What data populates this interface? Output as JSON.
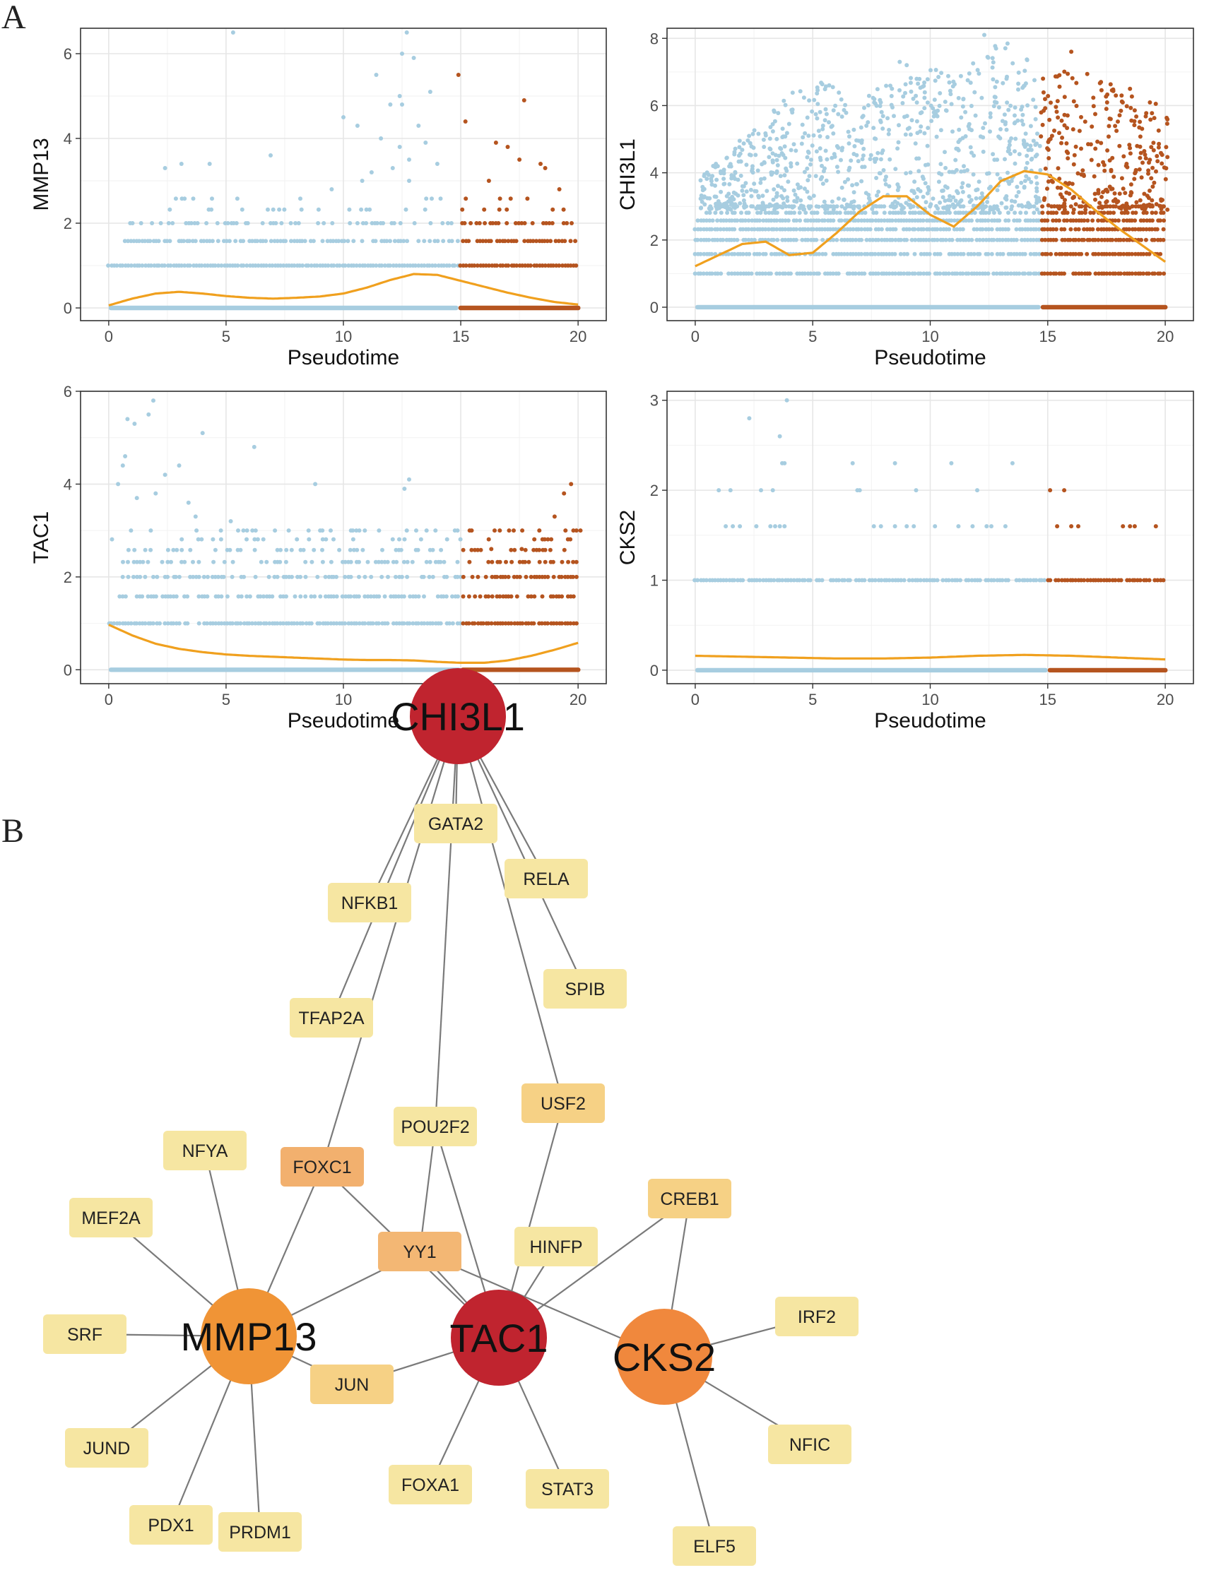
{
  "panels": {
    "a": "A",
    "b": "B"
  },
  "colors": {
    "early": "#a7cde0",
    "late": "#b5541f",
    "smooth": "#f0a01e",
    "tac_chi": "#c0242f",
    "mmp": "#f09436",
    "cks": "#f0883d",
    "tf_light": "#f6e6a2",
    "tf_mid": "#f6d185",
    "tf_foxc1": "#f2b06e",
    "tf_yy1": "#f3b774"
  },
  "chart_data": [
    {
      "type": "scatter",
      "id": "mmp13",
      "xlabel": "Pseudotime",
      "ylabel": "MMP13",
      "xlim": [
        -1.2,
        21.2
      ],
      "ylim": [
        -0.3,
        6.6
      ],
      "xticks": [
        0,
        5,
        10,
        15,
        20
      ],
      "yticks": [
        0,
        2,
        4,
        6
      ],
      "levels": [
        [
          1.0,
          0,
          20.0,
          1.0
        ],
        [
          1.58,
          0.7,
          20.0,
          0.75
        ],
        [
          2.0,
          0.9,
          20.0,
          0.45
        ],
        [
          2.32,
          1.5,
          20.0,
          0.2
        ],
        [
          2.58,
          2.5,
          18.0,
          0.12
        ]
      ],
      "split": 14.9,
      "density": 1.0,
      "sparse": [
        [
          5.3,
          6.5
        ],
        [
          12.7,
          6.5
        ],
        [
          12.5,
          6.0
        ],
        [
          13.0,
          5.9
        ],
        [
          11.4,
          5.5
        ],
        [
          14.9,
          5.5
        ],
        [
          12.4,
          5.0
        ],
        [
          12.0,
          4.8
        ],
        [
          10.0,
          4.5
        ],
        [
          10.6,
          4.3
        ],
        [
          13.2,
          4.3
        ],
        [
          15.2,
          4.4
        ],
        [
          13.5,
          3.9
        ],
        [
          12.8,
          3.5
        ],
        [
          12.1,
          3.3
        ],
        [
          12.8,
          3.0
        ],
        [
          14.0,
          3.4
        ],
        [
          16.5,
          3.9
        ],
        [
          17.0,
          3.8
        ],
        [
          17.7,
          4.9
        ],
        [
          18.4,
          3.4
        ],
        [
          2.4,
          3.3
        ],
        [
          3.1,
          3.4
        ],
        [
          4.3,
          3.4
        ],
        [
          6.9,
          3.6
        ],
        [
          13.7,
          5.1
        ],
        [
          12.5,
          4.8
        ],
        [
          11.6,
          4.0
        ],
        [
          12.4,
          3.8
        ],
        [
          11.2,
          3.2
        ],
        [
          10.8,
          3.0
        ],
        [
          9.5,
          2.8
        ],
        [
          16.2,
          3.0
        ],
        [
          17.5,
          3.5
        ],
        [
          18.6,
          3.3
        ],
        [
          19.2,
          2.8
        ]
      ],
      "smooth_x": [
        0,
        1,
        2,
        3,
        4,
        5,
        6,
        7,
        8,
        9,
        10,
        11,
        12,
        13,
        14,
        15,
        16,
        17,
        18,
        19,
        20
      ],
      "smooth_y": [
        0.06,
        0.22,
        0.34,
        0.38,
        0.34,
        0.28,
        0.24,
        0.22,
        0.24,
        0.27,
        0.34,
        0.48,
        0.66,
        0.8,
        0.78,
        0.64,
        0.5,
        0.36,
        0.24,
        0.14,
        0.08
      ]
    },
    {
      "type": "scatter",
      "id": "chi3l1",
      "xlabel": "Pseudotime",
      "ylabel": "CHI3L1",
      "xlim": [
        -1.2,
        21.2
      ],
      "ylim": [
        -0.4,
        8.3
      ],
      "xticks": [
        0,
        5,
        10,
        15,
        20
      ],
      "yticks": [
        0,
        2,
        4,
        6,
        8
      ],
      "levels": [
        [
          1.0,
          0,
          20.0,
          0.9
        ],
        [
          1.58,
          0,
          20.0,
          0.9
        ],
        [
          2.0,
          0,
          20.0,
          0.9
        ],
        [
          2.32,
          0,
          20.0,
          0.9
        ],
        [
          2.58,
          0,
          20.0,
          0.9
        ],
        [
          2.81,
          0.5,
          20.0,
          0.7
        ],
        [
          3.0,
          0.5,
          20.0,
          0.6
        ]
      ],
      "split": 14.7,
      "density": 1.0,
      "cloud": {
        "n": 1100,
        "xmin": 0.2,
        "xmax": 20.1,
        "ymin": 2.9,
        "seed": 17,
        "amp": [
          4.0,
          4.4,
          5.1,
          5.6,
          6.4,
          6.8,
          6.7,
          6.6,
          6.8,
          6.9,
          7.1,
          7.2,
          7.5,
          8.1,
          7.5,
          7.2,
          7.5,
          6.8,
          6.6,
          6.3,
          6.0
        ]
      },
      "sparse": [
        [
          12.3,
          8.1
        ],
        [
          12.8,
          7.7
        ],
        [
          16.0,
          7.6
        ],
        [
          9.0,
          7.2
        ],
        [
          8.7,
          7.3
        ],
        [
          5.7,
          6.6
        ],
        [
          14.8,
          6.8
        ],
        [
          17.9,
          6.3
        ],
        [
          18.5,
          6.5
        ]
      ],
      "smooth_x": [
        0,
        1,
        2,
        3,
        4,
        5,
        6,
        7,
        8,
        9,
        10,
        11,
        12,
        13,
        14,
        15,
        16,
        17,
        18,
        19,
        20
      ],
      "smooth_y": [
        1.22,
        1.55,
        1.88,
        1.95,
        1.55,
        1.62,
        2.2,
        2.85,
        3.3,
        3.3,
        2.75,
        2.4,
        3.0,
        3.75,
        4.05,
        3.95,
        3.5,
        2.9,
        2.35,
        1.85,
        1.35
      ]
    },
    {
      "type": "scatter",
      "id": "tac1",
      "xlabel": "Pseudotime",
      "ylabel": "TAC1",
      "xlim": [
        -1.2,
        21.2
      ],
      "ylim": [
        -0.3,
        6.0
      ],
      "xticks": [
        0,
        5,
        10,
        15,
        20
      ],
      "yticks": [
        0,
        2,
        4,
        6
      ],
      "levels": [
        [
          1.0,
          0,
          20.0,
          0.95
        ],
        [
          1.58,
          0,
          20.0,
          0.6
        ],
        [
          2.0,
          0,
          20.0,
          0.55
        ],
        [
          2.32,
          0,
          20.0,
          0.35
        ],
        [
          2.58,
          0,
          20.0,
          0.28
        ],
        [
          2.81,
          0,
          20.0,
          0.2
        ],
        [
          3.0,
          0,
          20.0,
          0.18
        ]
      ],
      "split": 15.0,
      "density": 1.0,
      "sparse": [
        [
          1.9,
          5.8
        ],
        [
          1.7,
          5.5
        ],
        [
          0.8,
          5.4
        ],
        [
          1.1,
          5.3
        ],
        [
          4.0,
          5.1
        ],
        [
          6.2,
          4.8
        ],
        [
          0.7,
          4.6
        ],
        [
          0.6,
          4.4
        ],
        [
          3.0,
          4.4
        ],
        [
          2.4,
          4.2
        ],
        [
          0.4,
          4.0
        ],
        [
          8.8,
          4.0
        ],
        [
          12.8,
          4.1
        ],
        [
          12.6,
          3.9
        ],
        [
          19.7,
          4.0
        ],
        [
          19.4,
          3.8
        ],
        [
          2.0,
          3.8
        ],
        [
          1.2,
          3.7
        ],
        [
          3.7,
          3.3
        ],
        [
          3.4,
          3.6
        ],
        [
          5.2,
          3.2
        ],
        [
          10.4,
          3.0
        ],
        [
          12.7,
          3.0
        ],
        [
          19.0,
          3.3
        ],
        [
          19.8,
          3.0
        ],
        [
          20.1,
          3.0
        ],
        [
          16.3,
          2.6
        ],
        [
          17.6,
          2.6
        ]
      ],
      "smooth_x": [
        0,
        1,
        2,
        3,
        4,
        5,
        6,
        7,
        8,
        9,
        10,
        11,
        12,
        13,
        14,
        15,
        16,
        17,
        18,
        19,
        20
      ],
      "smooth_y": [
        0.97,
        0.74,
        0.56,
        0.45,
        0.38,
        0.33,
        0.3,
        0.28,
        0.26,
        0.24,
        0.22,
        0.21,
        0.21,
        0.2,
        0.17,
        0.15,
        0.15,
        0.2,
        0.3,
        0.43,
        0.58
      ]
    },
    {
      "type": "scatter",
      "id": "cks2",
      "xlabel": "Pseudotime",
      "ylabel": "CKS2",
      "xlim": [
        -1.2,
        21.2
      ],
      "ylim": [
        -0.15,
        3.1
      ],
      "xticks": [
        0,
        5,
        10,
        15,
        20
      ],
      "yticks": [
        0,
        1,
        2,
        3
      ],
      "levels": [
        [
          1.0,
          0,
          20.0,
          0.9
        ]
      ],
      "split": 15.0,
      "density": 1.0,
      "sparse": [
        [
          3.9,
          3.0
        ],
        [
          2.3,
          2.8
        ],
        [
          3.6,
          2.6
        ],
        [
          3.7,
          2.3
        ],
        [
          3.8,
          2.3
        ],
        [
          10.9,
          2.3
        ],
        [
          13.5,
          2.3
        ],
        [
          6.7,
          2.3
        ],
        [
          8.5,
          2.3
        ],
        [
          1.0,
          2.0
        ],
        [
          1.5,
          2.0
        ],
        [
          2.8,
          2.0
        ],
        [
          3.3,
          2.0
        ],
        [
          6.9,
          2.0
        ],
        [
          7.0,
          2.0
        ],
        [
          9.4,
          2.0
        ],
        [
          12.0,
          2.0
        ],
        [
          15.1,
          2.0
        ],
        [
          15.7,
          2.0
        ],
        [
          1.3,
          1.6
        ],
        [
          1.6,
          1.6
        ],
        [
          1.9,
          1.6
        ],
        [
          2.6,
          1.6
        ],
        [
          3.2,
          1.6
        ],
        [
          3.4,
          1.6
        ],
        [
          3.6,
          1.6
        ],
        [
          3.8,
          1.6
        ],
        [
          7.6,
          1.6
        ],
        [
          7.9,
          1.6
        ],
        [
          8.5,
          1.6
        ],
        [
          9.0,
          1.6
        ],
        [
          9.3,
          1.6
        ],
        [
          10.2,
          1.6
        ],
        [
          11.2,
          1.6
        ],
        [
          11.8,
          1.6
        ],
        [
          12.4,
          1.6
        ],
        [
          12.6,
          1.6
        ],
        [
          13.2,
          1.6
        ],
        [
          15.4,
          1.6
        ],
        [
          16.0,
          1.6
        ],
        [
          16.3,
          1.6
        ],
        [
          18.2,
          1.6
        ],
        [
          18.5,
          1.6
        ],
        [
          18.7,
          1.6
        ],
        [
          19.6,
          1.6
        ]
      ],
      "smooth_x": [
        0,
        2,
        4,
        6,
        8,
        10,
        12,
        14,
        16,
        18,
        20
      ],
      "smooth_y": [
        0.16,
        0.15,
        0.14,
        0.13,
        0.13,
        0.14,
        0.16,
        0.17,
        0.16,
        0.14,
        0.12
      ]
    }
  ],
  "network": {
    "genes": [
      {
        "id": "CHI3L1",
        "label": "CHI3L1",
        "color": "#c0242f"
      },
      {
        "id": "MMP13",
        "label": "MMP13",
        "color": "#f09436"
      },
      {
        "id": "TAC1",
        "label": "TAC1",
        "color": "#c0242f"
      },
      {
        "id": "CKS2",
        "label": "CKS2",
        "color": "#f0883d"
      }
    ],
    "tfs": [
      {
        "id": "GATA2",
        "label": "GATA2",
        "color": "#f6e6a2"
      },
      {
        "id": "RELA",
        "label": "RELA",
        "color": "#f6e6a2"
      },
      {
        "id": "NFKB1",
        "label": "NFKB1",
        "color": "#f6e6a2"
      },
      {
        "id": "SPIB",
        "label": "SPIB",
        "color": "#f6e6a2"
      },
      {
        "id": "TFAP2A",
        "label": "TFAP2A",
        "color": "#f6e6a2"
      },
      {
        "id": "USF2",
        "label": "USF2",
        "color": "#f6d185"
      },
      {
        "id": "POU2F2",
        "label": "POU2F2",
        "color": "#f6e6a2"
      },
      {
        "id": "NFYA",
        "label": "NFYA",
        "color": "#f6e6a2"
      },
      {
        "id": "FOXC1",
        "label": "FOXC1",
        "color": "#f2b06e"
      },
      {
        "id": "CREB1",
        "label": "CREB1",
        "color": "#f6d185"
      },
      {
        "id": "MEF2A",
        "label": "MEF2A",
        "color": "#f6e6a2"
      },
      {
        "id": "YY1",
        "label": "YY1",
        "color": "#f3b774"
      },
      {
        "id": "HINFP",
        "label": "HINFP",
        "color": "#f6e6a2"
      },
      {
        "id": "IRF2",
        "label": "IRF2",
        "color": "#f6e6a2"
      },
      {
        "id": "SRF",
        "label": "SRF",
        "color": "#f6e6a2"
      },
      {
        "id": "JUN",
        "label": "JUN",
        "color": "#f6d185"
      },
      {
        "id": "NFIC",
        "label": "NFIC",
        "color": "#f6e6a2"
      },
      {
        "id": "JUND",
        "label": "JUND",
        "color": "#f6e6a2"
      },
      {
        "id": "FOXA1",
        "label": "FOXA1",
        "color": "#f6e6a2"
      },
      {
        "id": "STAT3",
        "label": "STAT3",
        "color": "#f6e6a2"
      },
      {
        "id": "PDX1",
        "label": "PDX1",
        "color": "#f6e6a2"
      },
      {
        "id": "PRDM1",
        "label": "PRDM1",
        "color": "#f6e6a2"
      },
      {
        "id": "ELF5",
        "label": "ELF5",
        "color": "#f6e6a2"
      }
    ],
    "edges": [
      [
        "CHI3L1",
        "GATA2"
      ],
      [
        "CHI3L1",
        "RELA"
      ],
      [
        "CHI3L1",
        "NFKB1"
      ],
      [
        "CHI3L1",
        "SPIB"
      ],
      [
        "CHI3L1",
        "TFAP2A"
      ],
      [
        "CHI3L1",
        "USF2"
      ],
      [
        "CHI3L1",
        "POU2F2"
      ],
      [
        "CHI3L1",
        "FOXC1"
      ],
      [
        "MMP13",
        "NFYA"
      ],
      [
        "MMP13",
        "MEF2A"
      ],
      [
        "MMP13",
        "SRF"
      ],
      [
        "MMP13",
        "JUND"
      ],
      [
        "MMP13",
        "PDX1"
      ],
      [
        "MMP13",
        "PRDM1"
      ],
      [
        "MMP13",
        "FOXC1"
      ],
      [
        "MMP13",
        "YY1"
      ],
      [
        "MMP13",
        "JUN"
      ],
      [
        "TAC1",
        "FOXC1"
      ],
      [
        "TAC1",
        "YY1"
      ],
      [
        "TAC1",
        "POU2F2"
      ],
      [
        "TAC1",
        "USF2"
      ],
      [
        "TAC1",
        "HINFP"
      ],
      [
        "TAC1",
        "CREB1"
      ],
      [
        "TAC1",
        "JUN"
      ],
      [
        "TAC1",
        "FOXA1"
      ],
      [
        "TAC1",
        "STAT3"
      ],
      [
        "CKS2",
        "CREB1"
      ],
      [
        "CKS2",
        "IRF2"
      ],
      [
        "CKS2",
        "NFIC"
      ],
      [
        "CKS2",
        "ELF5"
      ],
      [
        "CKS2",
        "YY1"
      ],
      [
        "POU2F2",
        "YY1"
      ]
    ]
  }
}
